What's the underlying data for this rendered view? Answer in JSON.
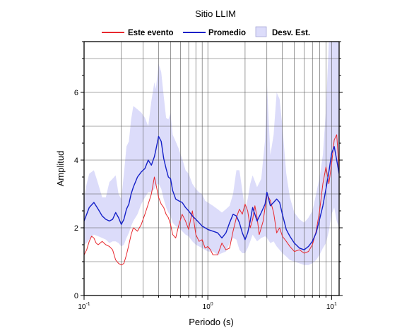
{
  "chart_data": {
    "type": "line",
    "title": "Sitio LLIM",
    "xlabel": "Periodo (s)",
    "ylabel": "Amplitud",
    "x_scale": "log",
    "xlim": [
      0.1,
      11.5
    ],
    "ylim": [
      0,
      7.5
    ],
    "grid": true,
    "legend_position": "top",
    "x_ticks": [
      {
        "base": "10",
        "exp": "-1",
        "value": 0.1
      },
      {
        "base": "10",
        "exp": "0",
        "value": 1
      },
      {
        "base": "10",
        "exp": "1",
        "value": 10
      }
    ],
    "y_ticks": [
      {
        "label": "0",
        "value": 0
      },
      {
        "label": "2",
        "value": 2
      },
      {
        "label": "4",
        "value": 4
      },
      {
        "label": "6",
        "value": 6
      }
    ],
    "legend": [
      {
        "name": "Este evento",
        "type": "line",
        "color": "#e8282e"
      },
      {
        "name": "Promedio",
        "type": "line",
        "color": "#1420c8"
      },
      {
        "name": "Desv. Est.",
        "type": "band",
        "color": "#dcdcfa"
      }
    ],
    "series": [
      {
        "name": "Este evento",
        "color": "#e8282e",
        "x": [
          0.1,
          0.105,
          0.11,
          0.115,
          0.12,
          0.125,
          0.13,
          0.14,
          0.15,
          0.16,
          0.17,
          0.18,
          0.19,
          0.2,
          0.21,
          0.22,
          0.23,
          0.24,
          0.25,
          0.27,
          0.29,
          0.31,
          0.33,
          0.35,
          0.37,
          0.38,
          0.4,
          0.42,
          0.44,
          0.46,
          0.48,
          0.5,
          0.52,
          0.55,
          0.58,
          0.62,
          0.66,
          0.7,
          0.75,
          0.8,
          0.85,
          0.9,
          0.95,
          1.0,
          1.05,
          1.1,
          1.2,
          1.3,
          1.4,
          1.5,
          1.6,
          1.7,
          1.8,
          1.9,
          2.0,
          2.1,
          2.2,
          2.3,
          2.4,
          2.5,
          2.6,
          2.7,
          2.8,
          2.9,
          3.0,
          3.2,
          3.4,
          3.6,
          3.8,
          4.0,
          4.3,
          4.6,
          5.0,
          5.5,
          6.0,
          6.5,
          7.0,
          7.5,
          8.0,
          8.5,
          9.0,
          9.5,
          10.0,
          10.5,
          11.0,
          11.5
        ],
        "values": [
          1.2,
          1.35,
          1.6,
          1.75,
          1.7,
          1.55,
          1.5,
          1.6,
          1.5,
          1.45,
          1.35,
          1.05,
          0.95,
          0.9,
          0.95,
          1.2,
          1.5,
          1.8,
          2.0,
          1.9,
          2.1,
          2.4,
          2.7,
          3.0,
          3.5,
          3.3,
          2.9,
          2.7,
          2.6,
          2.4,
          2.3,
          2.1,
          1.8,
          1.7,
          2.05,
          2.4,
          2.2,
          1.95,
          2.5,
          1.8,
          1.6,
          1.65,
          1.4,
          1.45,
          1.35,
          1.2,
          1.2,
          1.55,
          1.35,
          1.4,
          1.9,
          2.3,
          2.55,
          2.4,
          2.7,
          2.5,
          2.0,
          2.25,
          2.65,
          2.3,
          1.8,
          2.0,
          2.2,
          2.6,
          3.0,
          2.8,
          2.45,
          1.85,
          2.0,
          1.75,
          1.6,
          1.45,
          1.3,
          1.35,
          1.25,
          1.3,
          1.5,
          1.9,
          2.5,
          3.3,
          3.8,
          3.3,
          3.9,
          4.6,
          4.75,
          3.7
        ]
      },
      {
        "name": "Promedio",
        "color": "#1420c8",
        "x": [
          0.1,
          0.105,
          0.11,
          0.12,
          0.13,
          0.14,
          0.15,
          0.16,
          0.17,
          0.18,
          0.19,
          0.2,
          0.21,
          0.22,
          0.23,
          0.24,
          0.25,
          0.27,
          0.29,
          0.31,
          0.33,
          0.35,
          0.37,
          0.38,
          0.4,
          0.42,
          0.44,
          0.46,
          0.48,
          0.5,
          0.52,
          0.55,
          0.58,
          0.62,
          0.66,
          0.7,
          0.75,
          0.8,
          0.85,
          0.9,
          0.95,
          1.0,
          1.1,
          1.2,
          1.3,
          1.4,
          1.5,
          1.6,
          1.7,
          1.8,
          1.9,
          2.0,
          2.1,
          2.2,
          2.3,
          2.5,
          2.7,
          2.9,
          3.0,
          3.2,
          3.4,
          3.6,
          3.8,
          4.0,
          4.3,
          4.6,
          5.0,
          5.5,
          6.0,
          6.5,
          7.0,
          7.5,
          8.0,
          8.5,
          9.0,
          9.5,
          10.0,
          10.5,
          11.0,
          11.5
        ],
        "values": [
          2.2,
          2.4,
          2.6,
          2.75,
          2.55,
          2.35,
          2.25,
          2.2,
          2.25,
          2.45,
          2.3,
          2.1,
          2.25,
          2.55,
          2.7,
          3.0,
          3.2,
          3.5,
          3.65,
          3.75,
          4.0,
          3.85,
          4.1,
          4.3,
          4.7,
          4.55,
          4.05,
          3.75,
          3.5,
          3.45,
          3.1,
          2.85,
          2.8,
          2.75,
          2.6,
          2.5,
          2.35,
          2.25,
          2.15,
          2.05,
          2.0,
          1.95,
          1.9,
          1.85,
          1.7,
          1.85,
          2.15,
          2.4,
          2.35,
          2.15,
          1.85,
          1.65,
          1.85,
          2.2,
          2.6,
          2.2,
          2.45,
          2.7,
          3.05,
          2.65,
          2.75,
          2.85,
          2.75,
          2.4,
          1.95,
          1.75,
          1.55,
          1.4,
          1.35,
          1.45,
          1.6,
          1.85,
          2.25,
          2.65,
          3.15,
          3.65,
          4.2,
          4.4,
          4.0,
          3.6
        ]
      }
    ],
    "band": {
      "name": "Desv. Est.",
      "color": "#dcdcfa",
      "x": [
        0.1,
        0.105,
        0.11,
        0.12,
        0.13,
        0.14,
        0.15,
        0.16,
        0.17,
        0.18,
        0.19,
        0.2,
        0.21,
        0.22,
        0.23,
        0.24,
        0.25,
        0.27,
        0.29,
        0.31,
        0.33,
        0.35,
        0.37,
        0.38,
        0.4,
        0.42,
        0.44,
        0.46,
        0.48,
        0.5,
        0.52,
        0.55,
        0.58,
        0.62,
        0.66,
        0.7,
        0.75,
        0.8,
        0.85,
        0.9,
        0.95,
        1.0,
        1.1,
        1.2,
        1.3,
        1.4,
        1.5,
        1.6,
        1.7,
        1.8,
        1.9,
        2.0,
        2.1,
        2.2,
        2.3,
        2.5,
        2.7,
        2.9,
        3.0,
        3.2,
        3.4,
        3.6,
        3.8,
        4.0,
        4.3,
        4.6,
        5.0,
        5.5,
        6.0,
        6.5,
        7.0,
        7.5,
        8.0,
        8.5,
        9.0,
        9.5,
        10.0,
        10.5,
        11.0,
        11.5
      ],
      "upper": [
        2.9,
        3.3,
        3.6,
        3.7,
        3.3,
        2.9,
        2.9,
        3.35,
        3.45,
        3.55,
        3.0,
        2.85,
        3.6,
        4.4,
        4.55,
        5.2,
        5.6,
        5.5,
        5.4,
        5.25,
        5.0,
        5.75,
        6.3,
        6.1,
        6.85,
        6.6,
        5.9,
        5.25,
        5.2,
        5.4,
        4.75,
        4.55,
        4.35,
        4.05,
        3.7,
        3.6,
        3.3,
        3.15,
        3.05,
        3.0,
        2.8,
        2.75,
        2.65,
        2.55,
        2.45,
        2.55,
        2.65,
        3.0,
        3.7,
        3.7,
        3.1,
        2.55,
        2.85,
        3.3,
        3.55,
        3.2,
        3.45,
        4.6,
        6.3,
        4.15,
        4.75,
        6.0,
        5.8,
        5.0,
        3.6,
        2.9,
        2.45,
        2.25,
        2.15,
        2.3,
        2.5,
        3.0,
        3.5,
        4.15,
        5.5,
        7.5,
        7.5,
        7.5,
        7.5,
        7.5
      ],
      "lower": [
        1.5,
        1.55,
        1.65,
        1.8,
        1.75,
        1.7,
        1.65,
        1.55,
        1.6,
        1.6,
        1.55,
        1.45,
        1.5,
        1.7,
        1.85,
        2.05,
        2.2,
        2.4,
        2.7,
        2.9,
        3.05,
        3.05,
        3.15,
        3.25,
        3.3,
        3.15,
        2.85,
        2.6,
        2.45,
        2.35,
        2.15,
        2.05,
        2.0,
        1.9,
        1.8,
        1.75,
        1.6,
        1.5,
        1.45,
        1.4,
        1.35,
        1.3,
        1.3,
        1.2,
        1.25,
        1.3,
        1.55,
        1.7,
        1.65,
        1.35,
        1.25,
        1.25,
        1.4,
        1.6,
        1.8,
        1.6,
        1.7,
        1.75,
        1.7,
        1.55,
        1.6,
        1.45,
        1.35,
        1.25,
        1.15,
        1.05,
        1.0,
        0.95,
        0.9,
        0.9,
        0.95,
        1.05,
        1.2,
        1.4,
        1.55,
        1.9,
        2.4,
        2.6,
        2.2,
        2.0
      ]
    }
  }
}
